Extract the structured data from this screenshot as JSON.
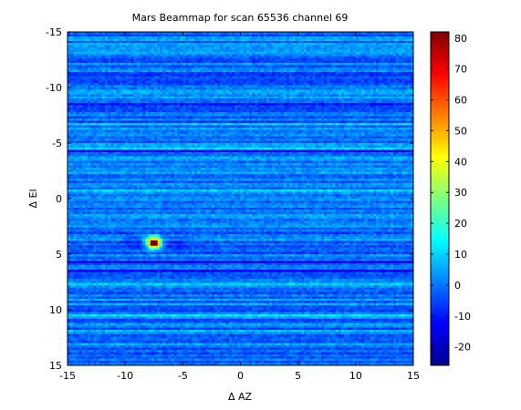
{
  "chart_data": {
    "type": "heatmap",
    "title": "Mars Beammap for scan 65536 channel 69",
    "xlabel": "Δ AZ",
    "ylabel": "Δ El",
    "xlim": [
      -15,
      15
    ],
    "ylim": [
      -15,
      15
    ],
    "y_reversed": true,
    "xticks": [
      -15,
      -10,
      -5,
      0,
      5,
      10,
      15
    ],
    "yticks": [
      -15,
      -10,
      -5,
      0,
      5,
      10,
      15
    ],
    "colormap": "jet",
    "color_range": [
      -26,
      82
    ],
    "colorbar_ticks": [
      -20,
      -10,
      0,
      10,
      20,
      30,
      40,
      50,
      60,
      70,
      80
    ],
    "background_level": 0,
    "noise": "horizontal striping with amplitude about ±10",
    "features": [
      {
        "label": "Mars",
        "x": -7.5,
        "y": 4.0,
        "peak_value": 82
      }
    ]
  }
}
